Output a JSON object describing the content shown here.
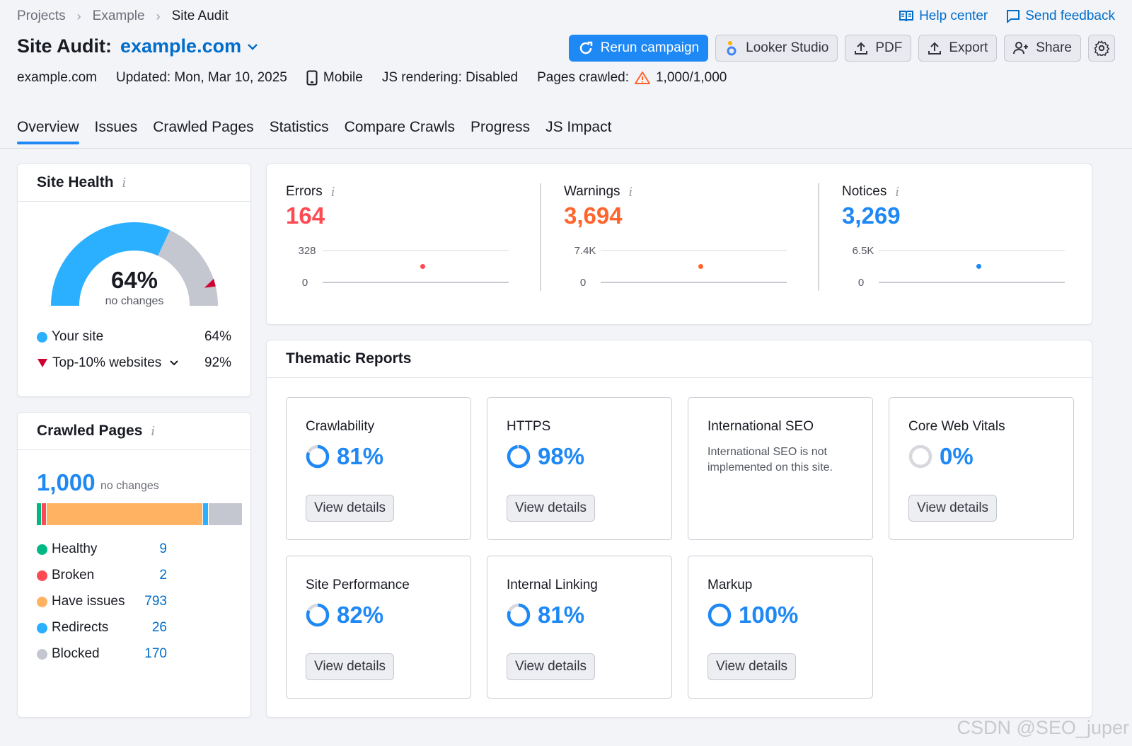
{
  "breadcrumb": [
    "Projects",
    "Example",
    "Site Audit"
  ],
  "help": {
    "help_center": "Help center",
    "send_feedback": "Send feedback"
  },
  "title": {
    "label": "Site Audit:",
    "domain": "example.com"
  },
  "buttons": {
    "rerun": "Rerun campaign",
    "looker": "Looker Studio",
    "pdf": "PDF",
    "export": "Export",
    "share": "Share"
  },
  "meta": {
    "domain": "example.com",
    "updated": "Updated: Mon, Mar 10, 2025",
    "device": "Mobile",
    "js": "JS rendering: Disabled",
    "pages_label": "Pages crawled:",
    "pages_value": "1,000/1,000"
  },
  "tabs": [
    "Overview",
    "Issues",
    "Crawled Pages",
    "Statistics",
    "Compare Crawls",
    "Progress",
    "JS Impact"
  ],
  "site_health": {
    "title": "Site Health",
    "value": "64%",
    "value_fraction": 0.64,
    "top_fraction": 0.92,
    "change": "no changes",
    "your_site_label": "Your site",
    "your_site_value": "64%",
    "top_label": "Top-10% websites",
    "top_value": "92%"
  },
  "crawled_pages": {
    "title": "Crawled Pages",
    "total": "1,000",
    "change": "no changes",
    "items": [
      {
        "label": "Healthy",
        "value": "9",
        "count": 9,
        "color": "#00b884"
      },
      {
        "label": "Broken",
        "value": "2",
        "count": 2,
        "color": "#ff4953"
      },
      {
        "label": "Have issues",
        "value": "793",
        "count": 793,
        "color": "#ffb261"
      },
      {
        "label": "Redirects",
        "value": "26",
        "count": 26,
        "color": "#2bafff"
      },
      {
        "label": "Blocked",
        "value": "170",
        "count": 170,
        "color": "#c4c7cf"
      }
    ]
  },
  "metrics": [
    {
      "label": "Errors",
      "value": "164",
      "color": "#ff4953",
      "max_label": "328",
      "zero_label": "0",
      "point": 164,
      "max": 328
    },
    {
      "label": "Warnings",
      "value": "3,694",
      "color": "#ff642d",
      "max_label": "7.4K",
      "zero_label": "0",
      "point": 3694,
      "max": 7400
    },
    {
      "label": "Notices",
      "value": "3,269",
      "color": "#1e88f5",
      "max_label": "6.5K",
      "zero_label": "0",
      "point": 3269,
      "max": 6500
    }
  ],
  "thematic": {
    "title": "Thematic Reports",
    "view_details": "View details",
    "reports": [
      {
        "title": "Crawlability",
        "value": "81%",
        "fraction": 0.81
      },
      {
        "title": "HTTPS",
        "value": "98%",
        "fraction": 0.98
      },
      {
        "title": "International SEO",
        "value": "",
        "description": "International SEO is not implemented on this site."
      },
      {
        "title": "Core Web Vitals",
        "value": "0%",
        "fraction": 0
      },
      {
        "title": "Site Performance",
        "value": "82%",
        "fraction": 0.82
      },
      {
        "title": "Internal Linking",
        "value": "81%",
        "fraction": 0.81
      },
      {
        "title": "Markup",
        "value": "100%",
        "fraction": 1.0
      }
    ]
  },
  "watermark": "CSDN @SEO_juper",
  "colors": {
    "accent": "#1e88f5",
    "link": "#006dca",
    "gauge_gray": "#c4c7cf",
    "marker": "#d1002f"
  }
}
